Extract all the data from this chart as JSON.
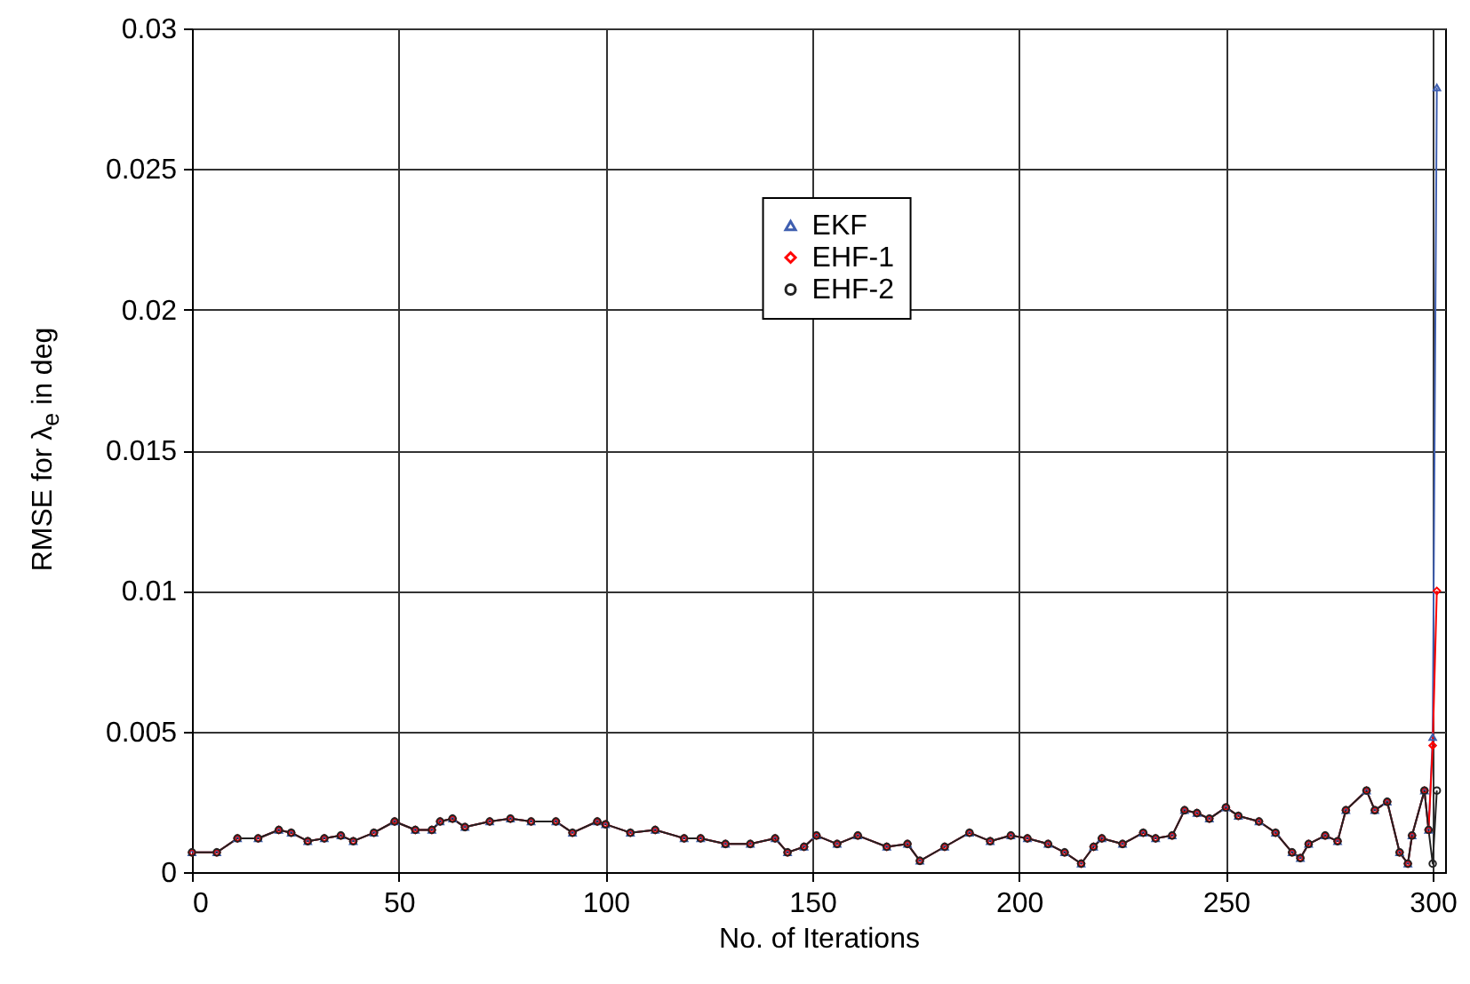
{
  "chart_data": {
    "type": "line",
    "xlabel": "No. of Iterations",
    "ylabel": "RMSE for λ$_{e}$ in deg",
    "x": [
      0,
      6,
      11,
      16,
      21,
      24,
      28,
      32,
      36,
      39,
      44,
      49,
      54,
      58,
      60,
      63,
      66,
      72,
      77,
      82,
      88,
      92,
      98,
      100,
      106,
      112,
      119,
      123,
      129,
      135,
      141,
      144,
      148,
      151,
      156,
      161,
      168,
      173,
      176,
      182,
      188,
      193,
      198,
      202,
      207,
      211,
      215,
      218,
      220,
      225,
      230,
      233,
      237,
      240,
      243,
      246,
      250,
      253,
      258,
      262,
      266,
      268,
      270,
      274,
      277,
      279,
      284,
      286,
      289,
      292,
      294,
      295,
      298,
      299,
      300,
      301
    ],
    "series": [
      {
        "name": "EKF",
        "color": "#3f5fb0",
        "marker": "triangle",
        "values": [
          0.0007,
          0.0007,
          0.0012,
          0.0012,
          0.0015,
          0.0014,
          0.0011,
          0.0012,
          0.0013,
          0.0011,
          0.0014,
          0.0018,
          0.0015,
          0.0015,
          0.0018,
          0.0019,
          0.0016,
          0.0018,
          0.0019,
          0.0018,
          0.0018,
          0.0014,
          0.0018,
          0.0017,
          0.0014,
          0.0015,
          0.0012,
          0.0012,
          0.001,
          0.001,
          0.0012,
          0.0007,
          0.0009,
          0.0013,
          0.001,
          0.0013,
          0.0009,
          0.001,
          0.0004,
          0.0009,
          0.0014,
          0.0011,
          0.0013,
          0.0012,
          0.001,
          0.0007,
          0.0003,
          0.0009,
          0.0012,
          0.001,
          0.0014,
          0.0012,
          0.0013,
          0.0022,
          0.0021,
          0.0019,
          0.0023,
          0.002,
          0.0018,
          0.0014,
          0.0007,
          0.0005,
          0.001,
          0.0013,
          0.0011,
          0.0022,
          0.0029,
          0.0022,
          0.0025,
          0.0007,
          0.0003,
          0.0013,
          0.0029,
          0.0015,
          0.0048,
          0.0279
        ]
      },
      {
        "name": "EHF-1",
        "color": "#ff0000",
        "marker": "diamond",
        "values": [
          0.0007,
          0.0007,
          0.0012,
          0.0012,
          0.0015,
          0.0014,
          0.0011,
          0.0012,
          0.0013,
          0.0011,
          0.0014,
          0.0018,
          0.0015,
          0.0015,
          0.0018,
          0.0019,
          0.0016,
          0.0018,
          0.0019,
          0.0018,
          0.0018,
          0.0014,
          0.0018,
          0.0017,
          0.0014,
          0.0015,
          0.0012,
          0.0012,
          0.001,
          0.001,
          0.0012,
          0.0007,
          0.0009,
          0.0013,
          0.001,
          0.0013,
          0.0009,
          0.001,
          0.0004,
          0.0009,
          0.0014,
          0.0011,
          0.0013,
          0.0012,
          0.001,
          0.0007,
          0.0003,
          0.0009,
          0.0012,
          0.001,
          0.0014,
          0.0012,
          0.0013,
          0.0022,
          0.0021,
          0.0019,
          0.0023,
          0.002,
          0.0018,
          0.0014,
          0.0007,
          0.0005,
          0.001,
          0.0013,
          0.0011,
          0.0022,
          0.0029,
          0.0022,
          0.0025,
          0.0007,
          0.0003,
          0.0013,
          0.0029,
          0.0015,
          0.0045,
          0.01
        ]
      },
      {
        "name": "EHF-2",
        "color": "#222222",
        "marker": "circle",
        "values": [
          0.0007,
          0.0007,
          0.0012,
          0.0012,
          0.0015,
          0.0014,
          0.0011,
          0.0012,
          0.0013,
          0.0011,
          0.0014,
          0.0018,
          0.0015,
          0.0015,
          0.0018,
          0.0019,
          0.0016,
          0.0018,
          0.0019,
          0.0018,
          0.0018,
          0.0014,
          0.0018,
          0.0017,
          0.0014,
          0.0015,
          0.0012,
          0.0012,
          0.001,
          0.001,
          0.0012,
          0.0007,
          0.0009,
          0.0013,
          0.001,
          0.0013,
          0.0009,
          0.001,
          0.0004,
          0.0009,
          0.0014,
          0.0011,
          0.0013,
          0.0012,
          0.001,
          0.0007,
          0.0003,
          0.0009,
          0.0012,
          0.001,
          0.0014,
          0.0012,
          0.0013,
          0.0022,
          0.0021,
          0.0019,
          0.0023,
          0.002,
          0.0018,
          0.0014,
          0.0007,
          0.0005,
          0.001,
          0.0013,
          0.0011,
          0.0022,
          0.0029,
          0.0022,
          0.0025,
          0.0007,
          0.0003,
          0.0013,
          0.0029,
          0.0015,
          0.0003,
          0.0029
        ]
      }
    ],
    "xlim": [
      0,
      303
    ],
    "xticks": [
      0,
      50,
      100,
      150,
      200,
      250,
      300
    ],
    "ylim": [
      0,
      0.03
    ],
    "yticks": [
      0,
      0.005,
      0.01,
      0.015,
      0.02,
      0.025,
      0.03
    ],
    "grid": true,
    "legend": "top"
  }
}
